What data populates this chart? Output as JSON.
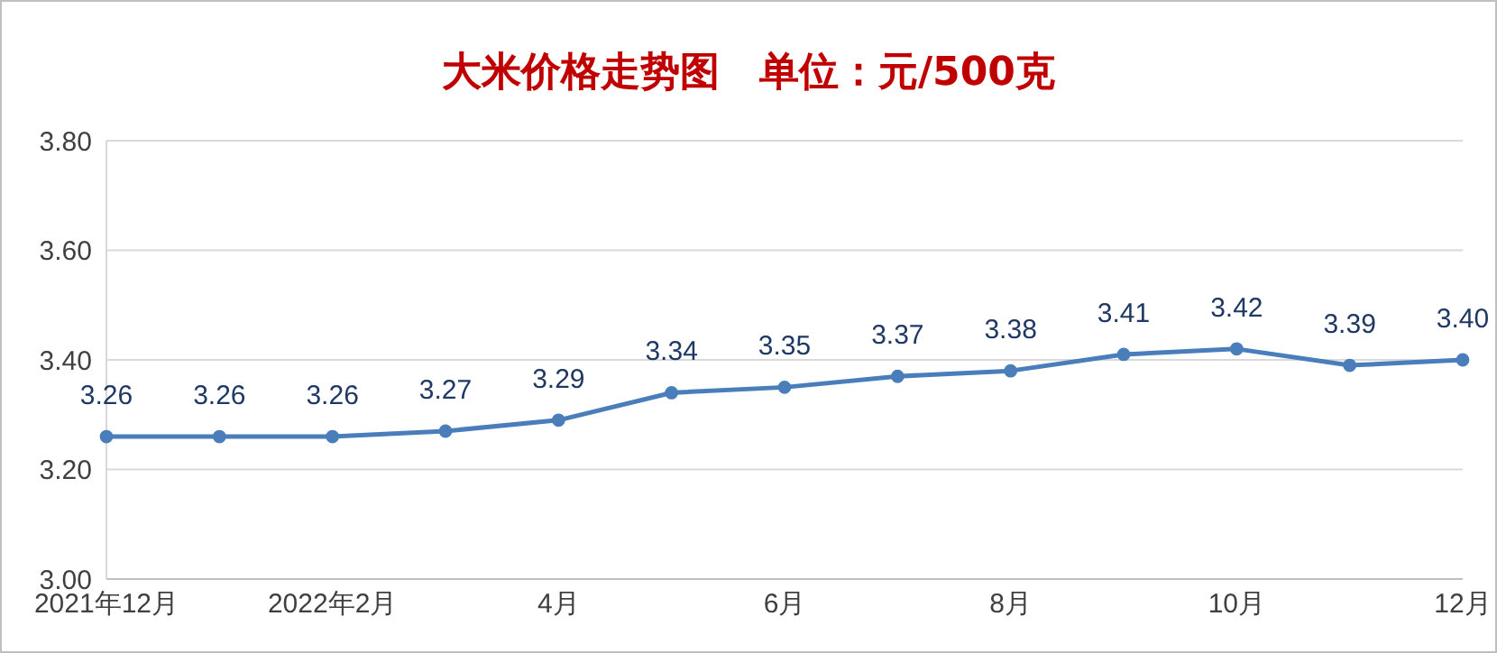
{
  "chart_data": {
    "type": "line",
    "title": "大米价格走势图　单位：元/500克",
    "categories": [
      "2021年12月",
      null,
      "2022年2月",
      null,
      "4月",
      null,
      "6月",
      null,
      "8月",
      null,
      "10月",
      null,
      "12月"
    ],
    "series": [
      {
        "color": "#4a7ebb",
        "values": [
          3.26,
          3.26,
          3.26,
          3.27,
          3.29,
          3.34,
          3.35,
          3.37,
          3.38,
          3.41,
          3.42,
          3.39,
          3.4
        ],
        "value_labels": [
          "3.26",
          "3.26",
          "3.26",
          "3.27",
          "3.29",
          "3.34",
          "3.35",
          "3.37",
          "3.38",
          "3.41",
          "3.42",
          "3.39",
          "3.40"
        ]
      }
    ],
    "ylim": [
      3.0,
      3.8
    ],
    "yticks": [
      {
        "value": 3.0,
        "label": "3.00"
      },
      {
        "value": 3.2,
        "label": "3.20"
      },
      {
        "value": 3.4,
        "label": "3.40"
      },
      {
        "value": 3.6,
        "label": "3.60"
      },
      {
        "value": 3.8,
        "label": "3.80"
      }
    ],
    "grid": "y",
    "legend": false,
    "marker": "circle",
    "line_style": "solid"
  }
}
